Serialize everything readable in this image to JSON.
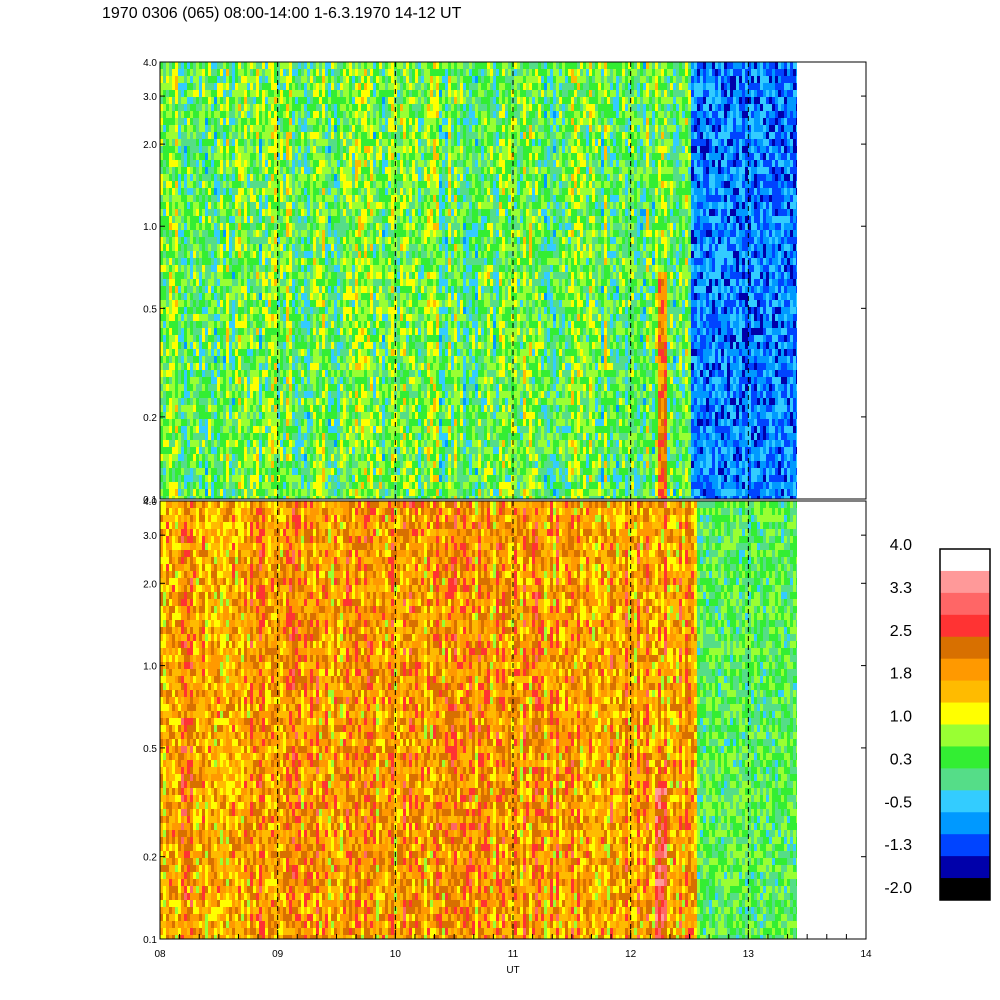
{
  "title": "1970 0306 (065) 08:00-14:00 1-6.3.1970  14-12 UT",
  "chart_data": [
    {
      "type": "heatmap",
      "panel": "top",
      "x_range_hours": [
        8,
        14
      ],
      "data_end_hour": 13.43,
      "y_scale": "log",
      "ylim": [
        0.1,
        4.0
      ],
      "y_ticks": [
        0.1,
        0.2,
        0.5,
        1.0,
        2.0,
        3.0,
        4.0
      ],
      "y_tick_labels": [
        "0.1",
        "0.2",
        "0.5",
        "1.0",
        "2.0",
        "3.0",
        "4.0"
      ],
      "dashed_hour_lines": [
        9,
        10,
        11,
        12,
        13
      ],
      "dominant_level": 0.5,
      "features": [
        {
          "x_from": 12.5,
          "x_to": 13.43,
          "level": -0.8,
          "description": "low values"
        },
        {
          "x_from": 12.22,
          "x_to": 12.3,
          "y_max": 0.7,
          "level": 2.2,
          "description": "high-value streak"
        }
      ]
    },
    {
      "type": "heatmap",
      "panel": "bottom",
      "x_range_hours": [
        8,
        14
      ],
      "data_end_hour": 13.43,
      "y_scale": "log",
      "ylim": [
        0.1,
        4.0
      ],
      "y_ticks": [
        0.1,
        0.2,
        0.5,
        1.0,
        2.0,
        3.0,
        4.0
      ],
      "y_tick_labels": [
        "0.1",
        "0.2",
        "0.5",
        "1.0",
        "2.0",
        "3.0",
        "4.0"
      ],
      "dashed_hour_lines": [
        9,
        10,
        11,
        12,
        13
      ],
      "dominant_level": 1.9,
      "features": [
        {
          "x_from": 12.55,
          "x_to": 13.43,
          "level": 0.4,
          "description": "lower values"
        },
        {
          "x_from": 12.2,
          "x_to": 12.3,
          "y_max": 0.4,
          "level": 2.8,
          "description": "high-value streak"
        }
      ]
    }
  ],
  "x_axis": {
    "label": "UT",
    "ticks": [
      8,
      9,
      10,
      11,
      12,
      13,
      14
    ],
    "tick_labels": [
      "08",
      "09",
      "10",
      "11",
      "12",
      "13",
      "14"
    ]
  },
  "colorbar": {
    "labels": [
      "4.0",
      "3.3",
      "2.5",
      "1.8",
      "1.0",
      "0.3",
      "-0.5",
      "-1.3",
      "-2.0"
    ],
    "colors": [
      "#ffffff",
      "#ff9999",
      "#ff6666",
      "#ff3333",
      "#d87000",
      "#ff9900",
      "#ffbb00",
      "#ffff00",
      "#99ff33",
      "#33ee33",
      "#55dd88",
      "#33ccff",
      "#0099ff",
      "#0044ff",
      "#0000aa",
      "#000000"
    ]
  }
}
